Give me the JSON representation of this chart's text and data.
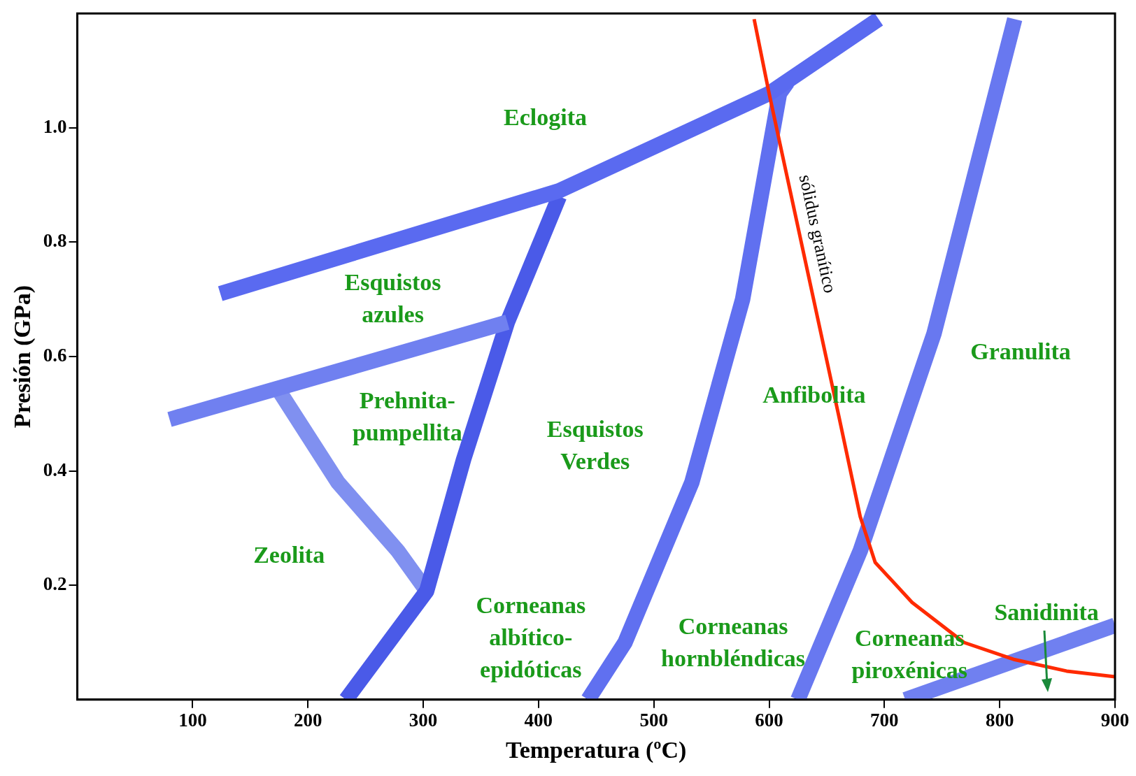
{
  "chart_data": {
    "type": "line",
    "xlabel": "Temperatura (ºC)",
    "ylabel": "Presión (GPa)",
    "xlim": [
      0,
      900
    ],
    "xticks": [
      100,
      200,
      300,
      400,
      500,
      600,
      700,
      800,
      900
    ],
    "ylim": [
      0,
      1.2
    ],
    "yticks": [
      0.2,
      0.4,
      0.6,
      0.8,
      {
        "value": 1,
        "label": "1.0"
      }
    ],
    "series": [
      {
        "color": "#5a6af0",
        "x": [
          124,
          418,
          600,
          695
        ],
        "values": [
          0.71,
          0.89,
          1.06,
          1.19
        ]
      },
      {
        "color": "#7080f0",
        "x": [
          80,
          373
        ],
        "values": [
          0.49,
          0.66
        ]
      },
      {
        "color": "#4a5ae8",
        "x": [
          233,
          303,
          335,
          373,
          418
        ],
        "values": [
          0,
          0.19,
          0.42,
          0.66,
          0.88
        ]
      },
      {
        "color": "#8090f0",
        "x": [
          175,
          226,
          278,
          303
        ],
        "values": [
          0.54,
          0.38,
          0.26,
          0.19
        ]
      },
      {
        "color": "#6070f0",
        "x": [
          443,
          475,
          533,
          577,
          609,
          616
        ],
        "values": [
          0,
          0.1,
          0.38,
          0.7,
          1.06,
          1.08
        ]
      },
      {
        "color": "#6878f0",
        "x": [
          625,
          679,
          743,
          813
        ],
        "values": [
          0,
          0.26,
          0.64,
          1.19
        ]
      },
      {
        "color": "#7080f0",
        "x": [
          718,
          900
        ],
        "values": [
          0,
          0.13
        ]
      },
      {
        "name": "sólidus granítico",
        "color": "#ff2a00",
        "x": [
          587,
          600,
          660,
          679,
          692,
          724,
          769,
          813,
          858,
          900
        ],
        "values": [
          1.19,
          1.06,
          0.5,
          0.32,
          0.24,
          0.17,
          0.1,
          0.07,
          0.05,
          0.04
        ]
      }
    ],
    "annotations": [
      "Eclogita",
      "Esquistos\nazules",
      "Prehnita-\npumpellita",
      "Zeolita",
      "Esquistos\nVerdes",
      "Anfibolita",
      "Granulita",
      "Corneanas\nalbítico-\nepidóticas",
      "Corneanas\nhornbléndicas",
      "Corneanas\npiroxénicas",
      "Sanidinita"
    ]
  }
}
